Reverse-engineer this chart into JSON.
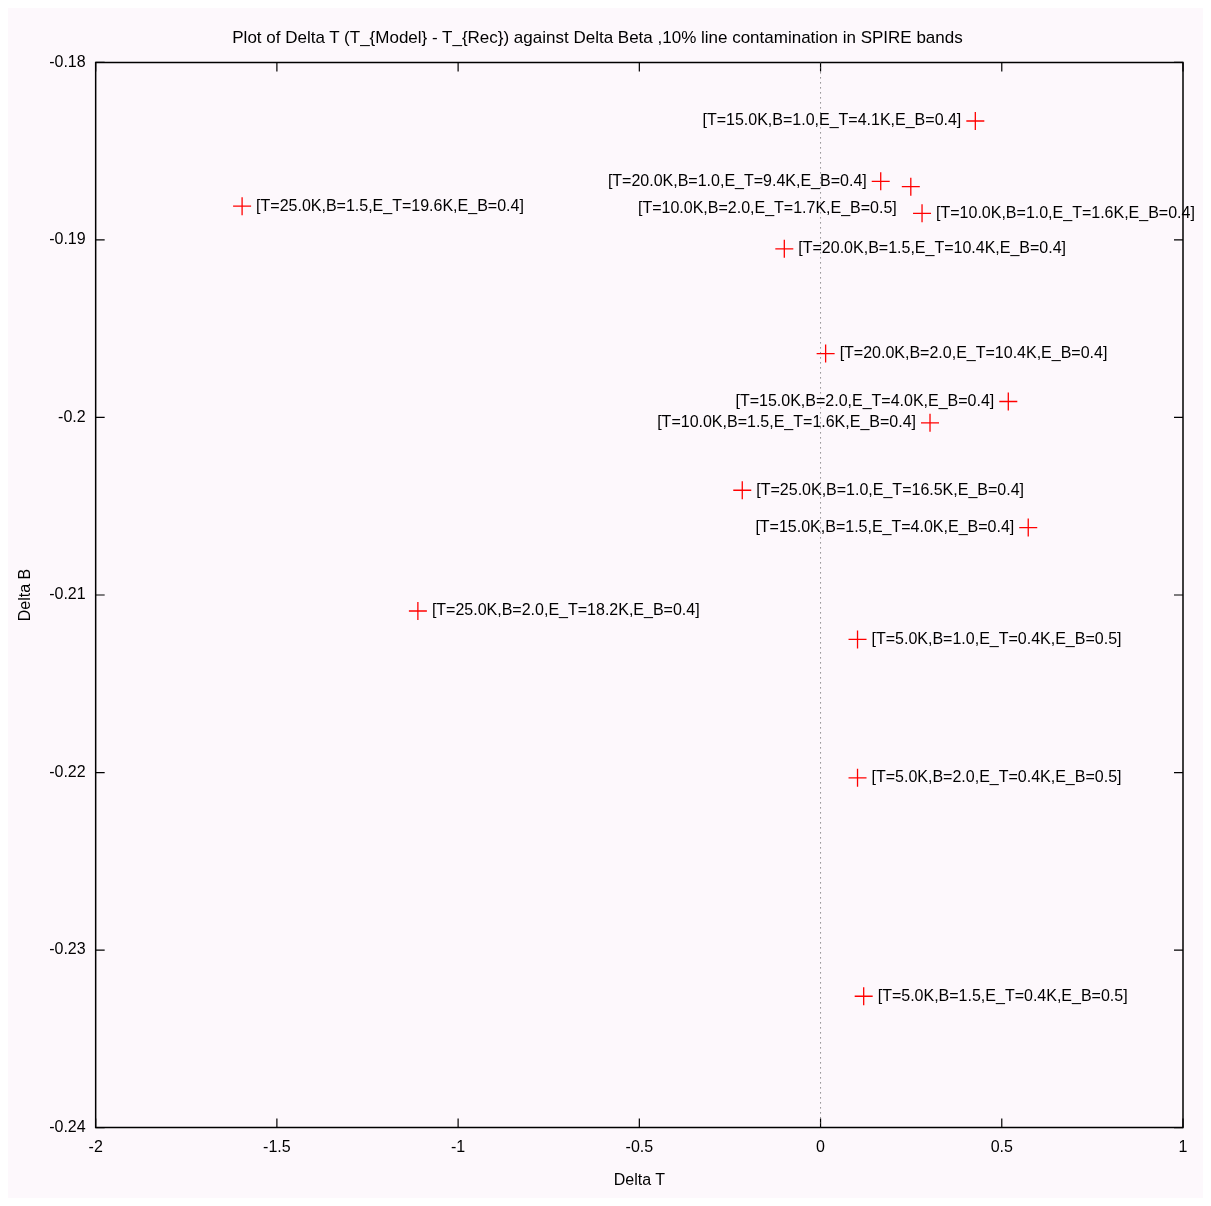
{
  "chart_data": {
    "type": "scatter",
    "title": "Plot of Delta T (T_{Model} - T_{Rec}) against Delta Beta ,10% line contamination in SPIRE bands",
    "xlabel": "Delta T",
    "ylabel": "Delta B",
    "x": [
      0.427,
      0.166,
      0.249,
      -1.596,
      0.28,
      -0.1,
      0.014,
      0.518,
      0.302,
      -0.216,
      0.573,
      -1.111,
      0.102,
      0.102,
      0.119
    ],
    "series": [
      {
        "color": "#ff0000",
        "values": [
          -0.1833,
          -0.1867,
          -0.187,
          -0.1881,
          -0.1885,
          -0.1905,
          -0.1964,
          -0.1991,
          -0.2003,
          -0.2041,
          -0.2062,
          -0.2109,
          -0.2125,
          -0.2203,
          -0.2326
        ]
      }
    ],
    "marker": "cross",
    "grid": false,
    "legend": false,
    "xlim": [
      -2,
      1
    ],
    "xticks": [
      -2,
      -1.5,
      -1,
      -0.5,
      0,
      0.5,
      1
    ],
    "ylim": [
      -0.24,
      -0.18
    ],
    "yticks": [
      -0.24,
      -0.23,
      -0.22,
      -0.21,
      -0.2,
      -0.19,
      -0.18
    ],
    "ref_lines": [
      {
        "axis": "x",
        "value": 0,
        "color": "#555555",
        "line_style": "dotted"
      }
    ],
    "annotations": [
      {
        "text": "[T=15.0K,B=1.0,E_T=4.1K,E_B=0.4]",
        "x": 0.427,
        "y": -0.1833
      },
      {
        "text": "[T=20.0K,B=1.0,E_T=9.4K,E_B=0.4]",
        "x": 0.166,
        "y": -0.1867
      },
      {
        "text": "[T=10.0K,B=2.0,E_T=1.7K,E_B=0.5]",
        "x": 0.249,
        "y": -0.187
      },
      {
        "text": "[T=25.0K,B=1.5,E_T=19.6K,E_B=0.4]",
        "x": -1.596,
        "y": -0.1881
      },
      {
        "text": "[T=10.0K,B=1.0,E_T=1.6K,E_B=0.4]",
        "x": 0.28,
        "y": -0.1885
      },
      {
        "text": "[T=20.0K,B=1.5,E_T=10.4K,E_B=0.4]",
        "x": -0.1,
        "y": -0.1905
      },
      {
        "text": "[T=20.0K,B=2.0,E_T=10.4K,E_B=0.4]",
        "x": 0.014,
        "y": -0.1964
      },
      {
        "text": "[T=15.0K,B=2.0,E_T=4.0K,E_B=0.4]",
        "x": 0.518,
        "y": -0.1991
      },
      {
        "text": "[T=10.0K,B=1.5,E_T=1.6K,E_B=0.4]",
        "x": 0.302,
        "y": -0.2003
      },
      {
        "text": "[T=25.0K,B=1.0,E_T=16.5K,E_B=0.4]",
        "x": -0.216,
        "y": -0.2041
      },
      {
        "text": "[T=15.0K,B=1.5,E_T=4.0K,E_B=0.4]",
        "x": 0.573,
        "y": -0.2062
      },
      {
        "text": "[T=25.0K,B=2.0,E_T=18.2K,E_B=0.4]",
        "x": -1.111,
        "y": -0.2109
      },
      {
        "text": "[T=5.0K,B=1.0,E_T=0.4K,E_B=0.5]",
        "x": 0.102,
        "y": -0.2125
      },
      {
        "text": "[T=5.0K,B=2.0,E_T=0.4K,E_B=0.5]",
        "x": 0.102,
        "y": -0.2203
      },
      {
        "text": "[T=5.0K,B=1.5,E_T=0.4K,E_B=0.5]",
        "x": 0.119,
        "y": -0.2326
      }
    ]
  }
}
